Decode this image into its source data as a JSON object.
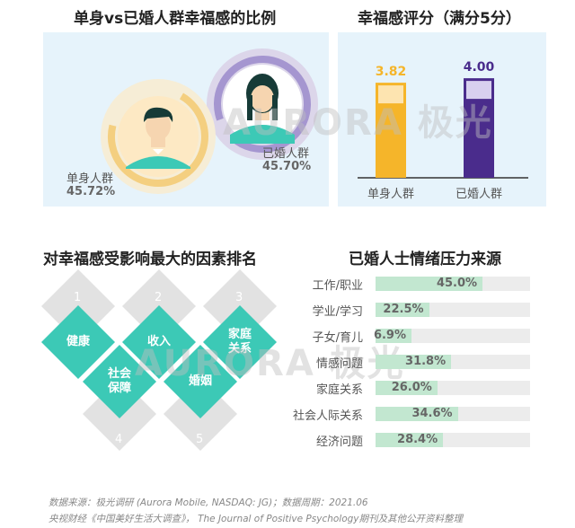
{
  "top_left": {
    "title": "单身vs已婚人群幸福感的比例",
    "single_label": "单身人群",
    "single_pct": "45.72%",
    "married_label": "已婚人群",
    "married_pct": "45.70%"
  },
  "top_right": {
    "title": "幸福感评分（满分5分）"
  },
  "bottom_left": {
    "title": "对幸福感受影响最大的因素排名",
    "factors": [
      {
        "rank": "1",
        "label": "健康"
      },
      {
        "rank": "2",
        "label": "收入"
      },
      {
        "rank": "3",
        "label": "家庭关系"
      },
      {
        "rank": "4",
        "label": "社会保障"
      },
      {
        "rank": "5",
        "label": "婚姻"
      }
    ]
  },
  "bottom_right": {
    "title": "已婚人士情绪压力来源"
  },
  "watermark": "AURORA 极光",
  "footer": {
    "line1": "数据来源：极光调研 (Aurora Mobile, NASDAQ: JG)；数据周期：2021.06",
    "line2": "央视财经《中国美好生活大调查》， The Journal of Positive Psychology期刊及其他公开资料整理"
  },
  "colors": {
    "single": "#f5b52a",
    "married": "#4a2c8c",
    "teal": "#3cc9b6",
    "stress_bar": "#c2e7d0"
  },
  "chart_data": [
    {
      "type": "bar",
      "title": "幸福感评分（满分5分）",
      "categories": [
        "单身人群",
        "已婚人群"
      ],
      "values": [
        3.82,
        4.0
      ],
      "ylim": [
        0,
        5
      ]
    },
    {
      "type": "bar",
      "title": "已婚人士情绪压力来源",
      "categories": [
        "工作/职业",
        "学业/学习",
        "子女/育儿",
        "情感问题",
        "家庭关系",
        "社会人际关系",
        "经济问题"
      ],
      "values": [
        45.0,
        22.5,
        6.9,
        31.8,
        26.0,
        34.6,
        28.4
      ],
      "value_labels": [
        "45.0%",
        "22.5%",
        "6.9%",
        "31.8%",
        "26.0%",
        "34.6%",
        "28.4%"
      ],
      "xlim": [
        0,
        65
      ],
      "orientation": "horizontal"
    },
    {
      "type": "pie",
      "title": "单身vs已婚人群幸福感的比例",
      "categories": [
        "单身人群",
        "已婚人群"
      ],
      "values": [
        45.72,
        45.7
      ]
    }
  ]
}
